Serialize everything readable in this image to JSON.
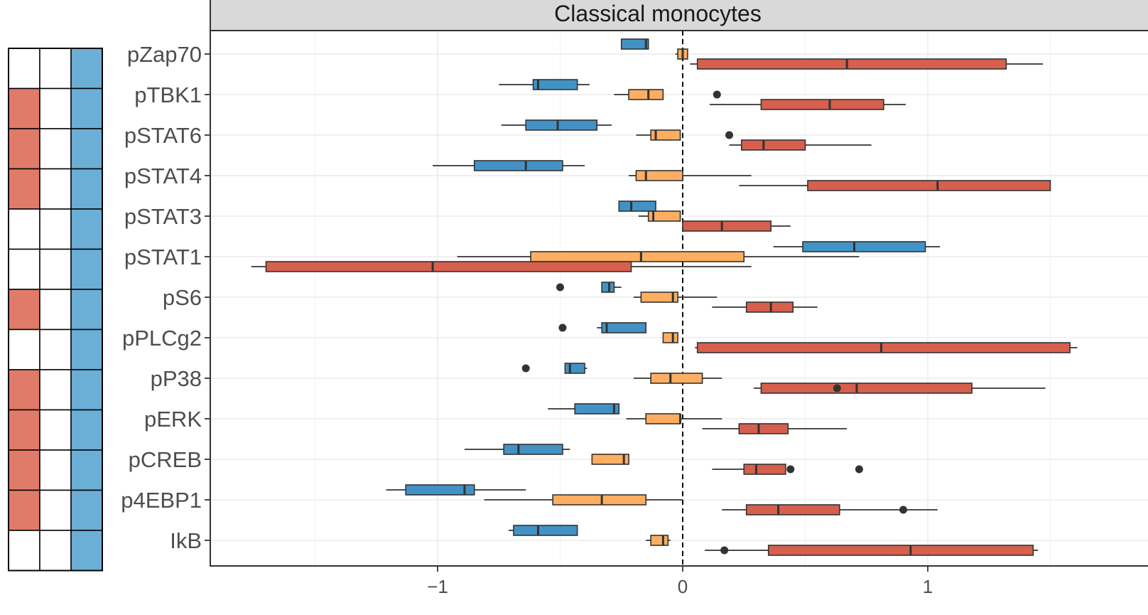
{
  "chart_data": {
    "type": "boxplot",
    "title": "Classical monocytes",
    "xlabel": "",
    "ylabel": "",
    "xlim": [
      -1.93,
      1.68
    ],
    "x_ticks": [
      -1,
      0,
      1
    ],
    "x_tick_labels": [
      "−1",
      "0",
      "1"
    ],
    "grid": true,
    "reference_line": {
      "x": 0,
      "style": "dashed"
    },
    "colors": {
      "blue": "#4292c6",
      "orange": "#fdae61",
      "red": "#d6604d",
      "heatmap_red": "#e07b6a",
      "heatmap_blue": "#6baed6",
      "strip_bg": "#d9d9d9"
    },
    "categories": [
      "pZap70",
      "pTBK1",
      "pSTAT6",
      "pSTAT4",
      "pSTAT3",
      "pSTAT1",
      "pS6",
      "pPLCg2",
      "pP38",
      "pERK",
      "pCREB",
      "p4EBP1",
      "IkB"
    ],
    "series": [
      {
        "color_key": "blue",
        "boxes": [
          {
            "min": -0.25,
            "q1": -0.25,
            "median": -0.15,
            "q3": -0.14,
            "max": -0.14,
            "outliers": []
          },
          {
            "min": -0.75,
            "q1": -0.61,
            "median": -0.59,
            "q3": -0.43,
            "max": -0.38,
            "outliers": []
          },
          {
            "min": -0.74,
            "q1": -0.64,
            "median": -0.51,
            "q3": -0.35,
            "max": -0.29,
            "outliers": []
          },
          {
            "min": -1.02,
            "q1": -0.85,
            "median": -0.64,
            "q3": -0.49,
            "max": -0.4,
            "outliers": []
          },
          {
            "min": -0.26,
            "q1": -0.26,
            "median": -0.21,
            "q3": -0.11,
            "max": -0.11,
            "outliers": []
          },
          {
            "min": 0.37,
            "q1": 0.49,
            "median": 0.7,
            "q3": 0.99,
            "max": 1.05,
            "outliers": []
          },
          {
            "min": -0.33,
            "q1": -0.33,
            "median": -0.3,
            "q3": -0.28,
            "max": -0.25,
            "outliers": [
              -0.5
            ]
          },
          {
            "min": -0.35,
            "q1": -0.33,
            "median": -0.31,
            "q3": -0.15,
            "max": -0.15,
            "outliers": [
              -0.49
            ]
          },
          {
            "min": -0.48,
            "q1": -0.48,
            "median": -0.46,
            "q3": -0.4,
            "max": -0.39,
            "outliers": [
              -0.64
            ]
          },
          {
            "min": -0.55,
            "q1": -0.44,
            "median": -0.28,
            "q3": -0.26,
            "max": -0.26,
            "outliers": []
          },
          {
            "min": -0.89,
            "q1": -0.73,
            "median": -0.67,
            "q3": -0.49,
            "max": -0.46,
            "outliers": []
          },
          {
            "min": -1.21,
            "q1": -1.13,
            "median": -0.89,
            "q3": -0.85,
            "max": -0.64,
            "outliers": []
          },
          {
            "min": -0.71,
            "q1": -0.69,
            "median": -0.59,
            "q3": -0.43,
            "max": -0.43,
            "outliers": []
          }
        ]
      },
      {
        "color_key": "orange",
        "boxes": [
          {
            "min": -0.03,
            "q1": -0.02,
            "median": 0.0,
            "q3": 0.02,
            "max": 0.02,
            "outliers": []
          },
          {
            "min": -0.28,
            "q1": -0.22,
            "median": -0.14,
            "q3": -0.08,
            "max": -0.08,
            "outliers": [
              0.14
            ]
          },
          {
            "min": -0.19,
            "q1": -0.13,
            "median": -0.11,
            "q3": -0.01,
            "max": -0.01,
            "outliers": [
              0.19
            ]
          },
          {
            "min": -0.22,
            "q1": -0.19,
            "median": -0.15,
            "q3": 0.0,
            "max": 0.28,
            "outliers": []
          },
          {
            "min": -0.18,
            "q1": -0.14,
            "median": -0.12,
            "q3": -0.01,
            "max": -0.01,
            "outliers": []
          },
          {
            "min": -0.92,
            "q1": -0.62,
            "median": -0.17,
            "q3": 0.25,
            "max": 0.72,
            "outliers": []
          },
          {
            "min": -0.2,
            "q1": -0.17,
            "median": -0.04,
            "q3": -0.02,
            "max": 0.14,
            "outliers": []
          },
          {
            "min": -0.08,
            "q1": -0.08,
            "median": -0.04,
            "q3": -0.02,
            "max": -0.02,
            "outliers": []
          },
          {
            "min": -0.2,
            "q1": -0.13,
            "median": -0.05,
            "q3": 0.08,
            "max": 0.16,
            "outliers": []
          },
          {
            "min": -0.23,
            "q1": -0.15,
            "median": -0.01,
            "q3": -0.01,
            "max": 0.16,
            "outliers": []
          },
          {
            "min": -0.37,
            "q1": -0.37,
            "median": -0.24,
            "q3": -0.22,
            "max": -0.22,
            "outliers": []
          },
          {
            "min": -0.81,
            "q1": -0.53,
            "median": -0.33,
            "q3": -0.15,
            "max": 0.0,
            "outliers": []
          },
          {
            "min": -0.15,
            "q1": -0.13,
            "median": -0.08,
            "q3": -0.06,
            "max": -0.05,
            "outliers": []
          }
        ]
      },
      {
        "color_key": "red",
        "boxes": [
          {
            "min": 0.03,
            "q1": 0.06,
            "median": 0.67,
            "q3": 1.32,
            "max": 1.47,
            "outliers": []
          },
          {
            "min": 0.11,
            "q1": 0.32,
            "median": 0.6,
            "q3": 0.82,
            "max": 0.91,
            "outliers": []
          },
          {
            "min": 0.19,
            "q1": 0.24,
            "median": 0.33,
            "q3": 0.5,
            "max": 0.77,
            "outliers": []
          },
          {
            "min": 0.23,
            "q1": 0.51,
            "median": 1.04,
            "q3": 1.5,
            "max": 1.5,
            "outliers": []
          },
          {
            "min": 0.0,
            "q1": 0.0,
            "median": 0.16,
            "q3": 0.36,
            "max": 0.44,
            "outliers": []
          },
          {
            "min": -1.76,
            "q1": -1.7,
            "median": -1.02,
            "q3": -0.21,
            "max": 0.28,
            "outliers": []
          },
          {
            "min": 0.12,
            "q1": 0.26,
            "median": 0.36,
            "q3": 0.45,
            "max": 0.55,
            "outliers": []
          },
          {
            "min": 0.05,
            "q1": 0.06,
            "median": 0.81,
            "q3": 1.58,
            "max": 1.61,
            "outliers": []
          },
          {
            "min": 0.29,
            "q1": 0.32,
            "median": 0.71,
            "q3": 1.18,
            "max": 1.48,
            "outliers": [
              0.63
            ]
          },
          {
            "min": 0.08,
            "q1": 0.23,
            "median": 0.31,
            "q3": 0.43,
            "max": 0.67,
            "outliers": []
          },
          {
            "min": 0.12,
            "q1": 0.25,
            "median": 0.3,
            "q3": 0.42,
            "max": 0.42,
            "outliers": [
              0.44,
              0.72
            ]
          },
          {
            "min": 0.16,
            "q1": 0.26,
            "median": 0.39,
            "q3": 0.64,
            "max": 1.04,
            "outliers": [
              0.9
            ]
          },
          {
            "min": 0.09,
            "q1": 0.35,
            "median": 0.93,
            "q3": 1.43,
            "max": 1.45,
            "outliers": [
              0.17
            ]
          }
        ]
      }
    ],
    "heatmap": {
      "columns": 3,
      "cells": [
        [
          "white",
          "white",
          "heatmap_blue"
        ],
        [
          "heatmap_red",
          "white",
          "heatmap_blue"
        ],
        [
          "heatmap_red",
          "white",
          "heatmap_blue"
        ],
        [
          "heatmap_red",
          "white",
          "heatmap_blue"
        ],
        [
          "white",
          "white",
          "heatmap_blue"
        ],
        [
          "white",
          "white",
          "heatmap_blue"
        ],
        [
          "heatmap_red",
          "white",
          "heatmap_blue"
        ],
        [
          "white",
          "white",
          "heatmap_blue"
        ],
        [
          "heatmap_red",
          "white",
          "heatmap_blue"
        ],
        [
          "heatmap_red",
          "white",
          "heatmap_blue"
        ],
        [
          "heatmap_red",
          "white",
          "heatmap_blue"
        ],
        [
          "heatmap_red",
          "white",
          "heatmap_blue"
        ],
        [
          "white",
          "white",
          "heatmap_blue"
        ]
      ]
    }
  }
}
